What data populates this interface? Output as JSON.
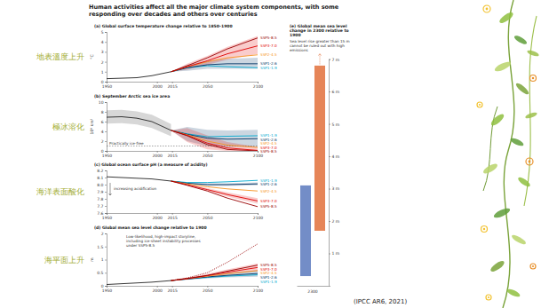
{
  "slide": {
    "title": "Human activities affect all the major climate system components, with some responding over decades and others over centuries",
    "labels": [
      "地表溫度上升",
      "極冰溶化",
      "海洋表面酸化",
      "海平面上升"
    ],
    "source": "(IPCC AR6, 2021)"
  },
  "chart_data": [
    {
      "type": "line",
      "title": "(a) Global surface temperature change relative to 1850–1900",
      "ylabel": "°C",
      "x": [
        1950,
        1965,
        1980,
        1995,
        2014,
        2030,
        2050,
        2070,
        2100
      ],
      "xlim": [
        1950,
        2100
      ],
      "xticks": [
        1950,
        2000,
        2015,
        2050,
        2100
      ],
      "ylim": [
        0,
        5
      ],
      "yticks": [
        0,
        1,
        2,
        3,
        4,
        5
      ],
      "series": [
        {
          "color": "#222222",
          "values": [
            0.3,
            0.35,
            0.4,
            0.6,
            1.0,
            null,
            null,
            null,
            null
          ]
        },
        {
          "name": "SSP1-1.9",
          "color": "#00a9cf",
          "values": [
            null,
            null,
            null,
            null,
            1.0,
            1.4,
            1.6,
            1.5,
            1.4
          ]
        },
        {
          "name": "SSP1-2.6",
          "color": "#003466",
          "values": [
            null,
            null,
            null,
            null,
            1.0,
            1.4,
            1.7,
            1.8,
            1.8
          ],
          "lower": [
            null,
            null,
            null,
            null,
            1.0,
            1.1,
            1.3,
            1.3,
            1.3
          ],
          "upper": [
            null,
            null,
            null,
            null,
            1.0,
            1.7,
            2.1,
            2.3,
            2.4
          ]
        },
        {
          "name": "SSP2-4.5",
          "color": "#f69320",
          "values": [
            null,
            null,
            null,
            null,
            1.0,
            1.5,
            2.0,
            2.4,
            2.7
          ]
        },
        {
          "name": "SSP3-7.0",
          "color": "#df0000",
          "values": [
            null,
            null,
            null,
            null,
            1.0,
            1.5,
            2.1,
            2.8,
            3.6
          ],
          "lower": [
            null,
            null,
            null,
            null,
            1.0,
            1.2,
            1.7,
            2.2,
            2.8
          ],
          "upper": [
            null,
            null,
            null,
            null,
            1.0,
            1.8,
            2.6,
            3.5,
            4.6
          ]
        },
        {
          "name": "SSP5-8.5",
          "color": "#980002",
          "values": [
            null,
            null,
            null,
            null,
            1.0,
            1.6,
            2.4,
            3.3,
            4.4
          ]
        }
      ]
    },
    {
      "type": "line",
      "title": "(b) September Arctic sea ice area",
      "ylabel": "10⁶ km²",
      "x": [
        1950,
        1965,
        1980,
        1995,
        2014,
        2030,
        2050,
        2070,
        2100
      ],
      "xlim": [
        1950,
        2100
      ],
      "xticks": [
        1950,
        2000,
        2015,
        2050,
        2100
      ],
      "ylim": [
        0,
        10
      ],
      "yticks": [
        0,
        2,
        4,
        6,
        8,
        10
      ],
      "reference_line": {
        "value": 1,
        "label": "Practically ice-free"
      },
      "series": [
        {
          "color": "#222222",
          "values": [
            6.9,
            7.0,
            6.7,
            6.0,
            4.2,
            null,
            null,
            null,
            null
          ],
          "lower": [
            5.6,
            5.7,
            5.4,
            4.7,
            3.0,
            null,
            null,
            null,
            null
          ],
          "upper": [
            8.3,
            8.4,
            8.1,
            7.4,
            5.5,
            null,
            null,
            null,
            null
          ]
        },
        {
          "name": "SSP1-1.9",
          "color": "#00a9cf",
          "values": [
            null,
            null,
            null,
            null,
            4.2,
            3.5,
            2.9,
            3.0,
            3.1
          ]
        },
        {
          "name": "SSP1-2.6",
          "color": "#003466",
          "values": [
            null,
            null,
            null,
            null,
            4.2,
            3.4,
            2.6,
            2.4,
            2.5
          ],
          "lower": [
            null,
            null,
            null,
            null,
            4.2,
            2.0,
            1.0,
            0.8,
            0.8
          ],
          "upper": [
            null,
            null,
            null,
            null,
            4.2,
            4.9,
            4.3,
            4.2,
            4.3
          ]
        },
        {
          "name": "SSP2-4.5",
          "color": "#f69320",
          "values": [
            null,
            null,
            null,
            null,
            4.2,
            3.3,
            2.0,
            1.2,
            0.7
          ]
        },
        {
          "name": "SSP3-7.0",
          "color": "#df0000",
          "values": [
            null,
            null,
            null,
            null,
            4.2,
            3.2,
            1.6,
            0.6,
            0.1
          ],
          "lower": [
            null,
            null,
            null,
            null,
            4.2,
            1.8,
            0.3,
            0,
            0
          ],
          "upper": [
            null,
            null,
            null,
            null,
            4.2,
            4.7,
            3.2,
            1.8,
            0.8
          ]
        },
        {
          "name": "SSP5-8.5",
          "color": "#980002",
          "values": [
            null,
            null,
            null,
            null,
            4.2,
            3.1,
            1.3,
            0.3,
            0.0
          ]
        }
      ]
    },
    {
      "type": "line",
      "title": "(c) Global ocean surface pH (a measure of acidity)",
      "annotation": "increasing acidification",
      "x": [
        1950,
        1965,
        1980,
        1995,
        2014,
        2030,
        2050,
        2070,
        2100
      ],
      "xlim": [
        1950,
        2100
      ],
      "xticks": [
        1950,
        2000,
        2015,
        2050,
        2100
      ],
      "ylim": [
        7.6,
        8.2
      ],
      "yticks": [
        7.6,
        7.7,
        7.8,
        7.9,
        {
          "value": 8,
          "label": "8.0"
        },
        8.1,
        8.2
      ],
      "series": [
        {
          "color": "#222222",
          "values": [
            8.11,
            8.1,
            8.09,
            8.08,
            8.05,
            null,
            null,
            null,
            null
          ]
        },
        {
          "name": "SSP1-1.9",
          "color": "#00a9cf",
          "values": [
            null,
            null,
            null,
            null,
            8.05,
            8.03,
            8.03,
            8.04,
            8.06
          ]
        },
        {
          "name": "SSP1-2.6",
          "color": "#003466",
          "values": [
            null,
            null,
            null,
            null,
            8.05,
            8.02,
            8.0,
            8.0,
            8.01
          ],
          "lower": [
            null,
            null,
            null,
            null,
            8.05,
            8.01,
            7.98,
            7.98,
            7.99
          ],
          "upper": [
            null,
            null,
            null,
            null,
            8.05,
            8.03,
            8.02,
            8.02,
            8.03
          ]
        },
        {
          "name": "SSP2-4.5",
          "color": "#f69320",
          "values": [
            null,
            null,
            null,
            null,
            8.05,
            8.01,
            7.97,
            7.94,
            7.91
          ]
        },
        {
          "name": "SSP3-7.0",
          "color": "#df0000",
          "values": [
            null,
            null,
            null,
            null,
            8.05,
            8.0,
            7.93,
            7.86,
            7.77
          ],
          "lower": [
            null,
            null,
            null,
            null,
            8.05,
            7.99,
            7.91,
            7.83,
            7.73
          ],
          "upper": [
            null,
            null,
            null,
            null,
            8.05,
            8.01,
            7.95,
            7.89,
            7.81
          ]
        },
        {
          "name": "SSP5-8.5",
          "color": "#980002",
          "values": [
            null,
            null,
            null,
            null,
            8.05,
            7.99,
            7.91,
            7.81,
            7.69
          ]
        }
      ]
    },
    {
      "type": "line",
      "title": "(d) Global mean sea level change relative to 1900",
      "ylabel": "m",
      "x": [
        1950,
        1965,
        1980,
        1995,
        2014,
        2030,
        2050,
        2070,
        2100
      ],
      "xlim": [
        1950,
        2100
      ],
      "xticks": [
        1950,
        2000,
        2015,
        2050,
        2100
      ],
      "ylim": [
        0,
        2
      ],
      "yticks": [
        0,
        0.5,
        1,
        1.5,
        2
      ],
      "series": [
        {
          "color": "#222222",
          "values": [
            0.05,
            0.08,
            0.11,
            0.14,
            0.2,
            null,
            null,
            null,
            null
          ]
        },
        {
          "name": "SSP1-1.9",
          "color": "#00a9cf",
          "values": [
            null,
            null,
            null,
            null,
            0.2,
            0.26,
            0.32,
            0.37,
            0.42
          ]
        },
        {
          "name": "SSP1-2.6",
          "color": "#003466",
          "values": [
            null,
            null,
            null,
            null,
            0.2,
            0.26,
            0.34,
            0.4,
            0.47
          ],
          "lower": [
            null,
            null,
            null,
            null,
            0.2,
            0.23,
            0.28,
            0.32,
            0.35
          ],
          "upper": [
            null,
            null,
            null,
            null,
            0.2,
            0.3,
            0.4,
            0.5,
            0.6
          ]
        },
        {
          "name": "SSP2-4.5",
          "color": "#f69320",
          "values": [
            null,
            null,
            null,
            null,
            0.2,
            0.27,
            0.37,
            0.46,
            0.58
          ]
        },
        {
          "name": "SSP3-7.0",
          "color": "#df0000",
          "values": [
            null,
            null,
            null,
            null,
            0.2,
            0.27,
            0.39,
            0.52,
            0.7
          ],
          "lower": [
            null,
            null,
            null,
            null,
            0.2,
            0.24,
            0.33,
            0.44,
            0.56
          ],
          "upper": [
            null,
            null,
            null,
            null,
            0.2,
            0.31,
            0.46,
            0.63,
            0.86
          ]
        },
        {
          "name": "SSP5-8.5",
          "color": "#980002",
          "values": [
            null,
            null,
            null,
            null,
            0.2,
            0.28,
            0.4,
            0.56,
            0.79
          ]
        },
        {
          "name": "Low-likelihood, high-impact storyline, including ice-sheet instability processes under SSP5-8.5",
          "color": "#980002",
          "line_style": "dotted",
          "values": [
            null,
            null,
            null,
            null,
            0.2,
            0.3,
            0.5,
            0.9,
            1.6
          ]
        }
      ]
    },
    {
      "type": "bar",
      "title": "(e) Global mean sea level change in 2300 relative to 1900",
      "annotation": "Sea level rise greater than 15 m cannot be ruled out with high emissions",
      "xlabel": "2300",
      "categories": [
        null,
        null
      ],
      "low": [
        0.3,
        1.7
      ],
      "high": [
        3.1,
        6.8
      ],
      "colors": [
        "#5b79bd",
        "#e2703b"
      ],
      "ylim": [
        0,
        7
      ],
      "yticks": [
        {
          "value": 1,
          "label": "1 m"
        },
        {
          "value": 2,
          "label": "2 m"
        },
        {
          "value": 3,
          "label": "3 m"
        },
        {
          "value": 4,
          "label": "4 m"
        },
        {
          "value": 5,
          "label": "5 m"
        },
        {
          "value": 6,
          "label": "6 m"
        },
        {
          "value": 7,
          "label": "7 m"
        }
      ]
    }
  ]
}
